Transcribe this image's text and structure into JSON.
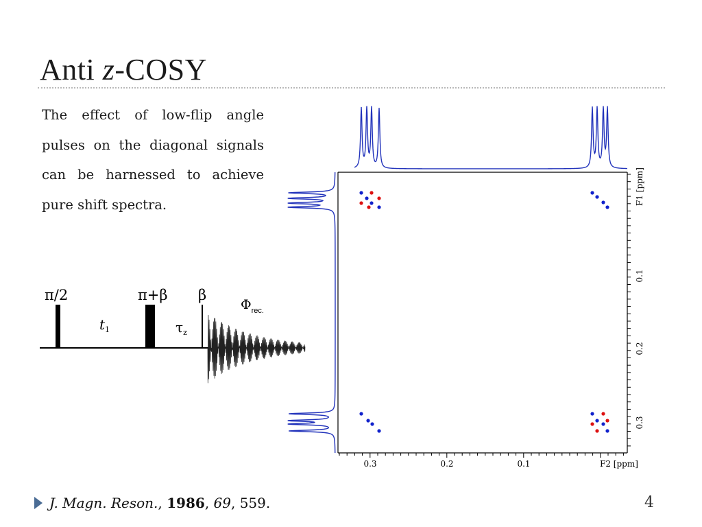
{
  "slide": {
    "title_prefix": "Anti ",
    "title_italic": "z",
    "title_suffix": "-COSY",
    "body": "The effect of low-flip angle pulses on the diagonal signals can be harnessed to achieve pure shift spectra.",
    "page_number": "4"
  },
  "citation": {
    "journal": "J. Magn. Reson.",
    "sep1": ", ",
    "year": "1986",
    "sep2": ", ",
    "volume": "69",
    "pages": ", 559."
  },
  "pulse_sequence": {
    "pulse1_label": "π/2",
    "delay1_label": "t",
    "delay1_subscript": "1",
    "pulse2_label": "π+β",
    "delay2_label": "τ",
    "delay2_subscript": "z",
    "pulse3_label": "β",
    "acq_label": "Φ",
    "acq_subscript": "rec."
  },
  "spectrum": {
    "f1_axis_label": "F1 [ppm]",
    "f2_axis_label": "F2 [ppm]",
    "f2_ticks": [
      "0.3",
      "0.2",
      "0.1"
    ],
    "f1_ticks": [
      "0.1",
      "0.2",
      "0.3"
    ],
    "colors": {
      "positive": "#1122cc",
      "negative": "#dd1111",
      "trace": "#2233bb"
    }
  }
}
